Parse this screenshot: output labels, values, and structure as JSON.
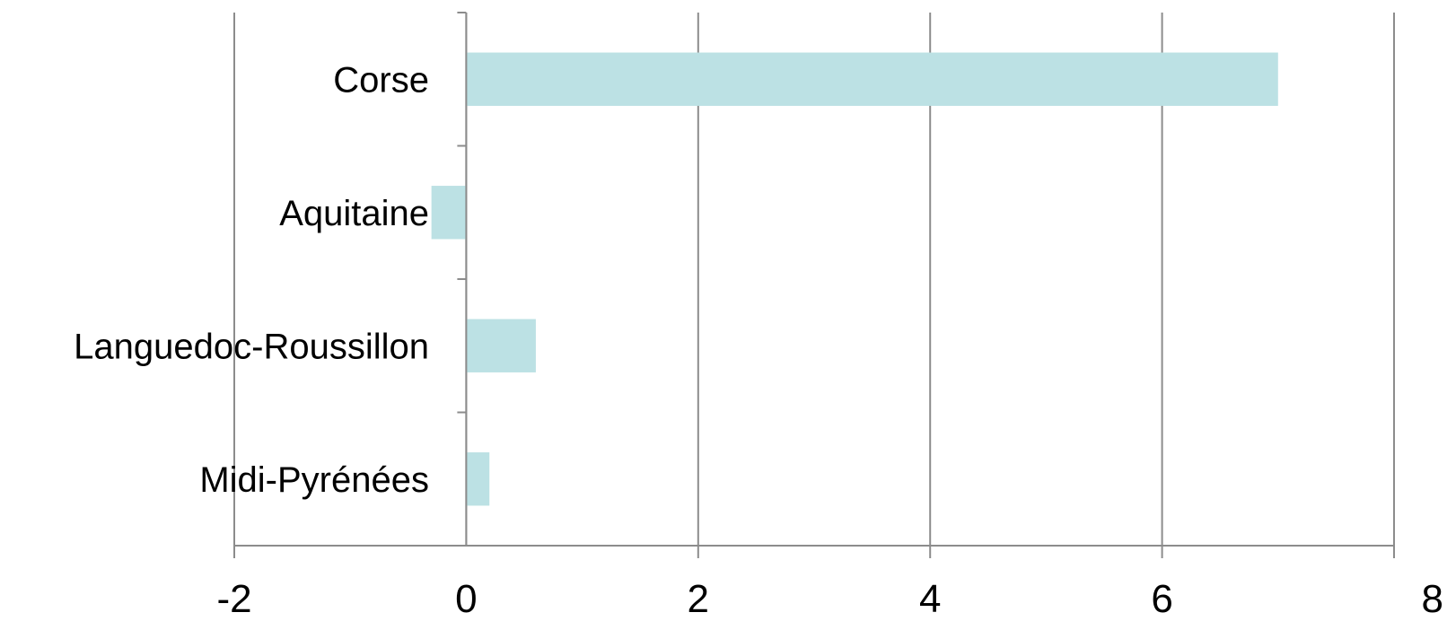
{
  "chart_data": {
    "type": "bar",
    "orientation": "horizontal",
    "categories": [
      "Corse",
      "Aquitaine",
      "Languedoc-Roussillon",
      "Midi-Pyrénées"
    ],
    "values": [
      7.0,
      -0.3,
      0.6,
      0.2
    ],
    "title": "",
    "xlabel": "",
    "ylabel": "",
    "xlim": [
      -2,
      8
    ],
    "xticks": [
      "-2",
      "0",
      "2",
      "4",
      "6",
      "8"
    ],
    "grid": true,
    "legend": "none",
    "bar_color": "#bce1e4",
    "grid_color": "#8c8c8c"
  }
}
